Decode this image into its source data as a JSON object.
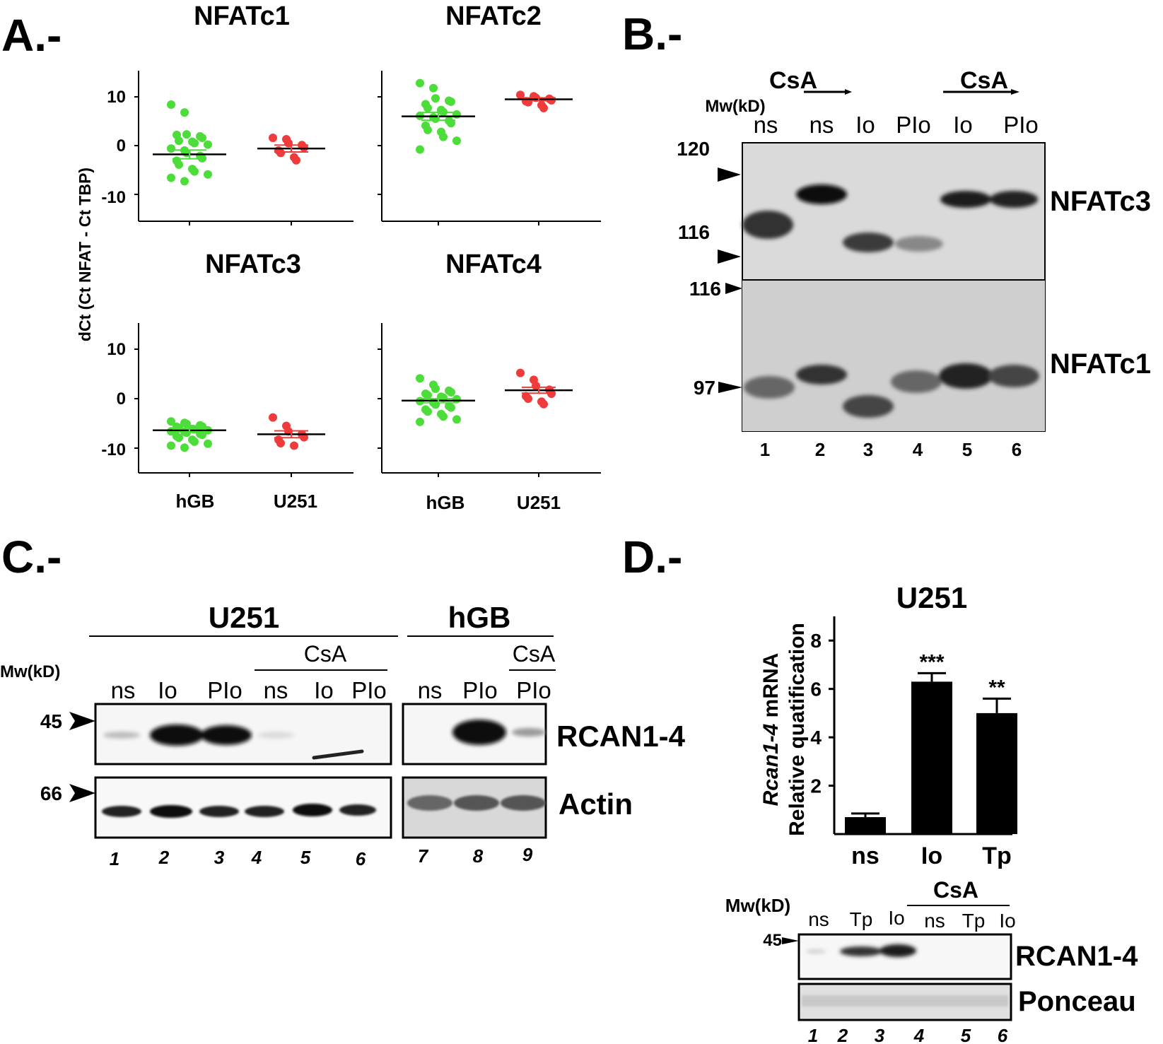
{
  "panels": {
    "A": {
      "label": "A.-",
      "ylabel": "dCt (Ct NFAT - Ct TBP)",
      "yticks": [
        "10",
        "0",
        "-10"
      ],
      "groups": [
        "hGB",
        "U251"
      ],
      "plots": [
        {
          "title": "NFATc1",
          "hGB": {
            "mean": -1.8,
            "sem": 0.9,
            "points": [
              8.4,
              6.8,
              2.3,
              1.9,
              1.6,
              2.2,
              1.0,
              0.8,
              0.5,
              0.2,
              -0.6,
              -1.0,
              -1.5,
              -2.1,
              -2.6,
              -3.1,
              -3.9,
              -4.8,
              -5.3,
              -5.9,
              -6.6,
              -7.3
            ]
          },
          "U251": {
            "mean": -0.6,
            "sem": 0.7,
            "points": [
              1.6,
              1.3,
              0.5,
              0.1,
              -0.4,
              -1.0,
              -1.5,
              -2.4,
              -3.0
            ]
          }
        },
        {
          "title": "NFATc2",
          "hGB": {
            "mean": 6.0,
            "sem": 0.8,
            "points": [
              12.8,
              11.8,
              9.7,
              9.2,
              9.0,
              8.5,
              7.7,
              7.3,
              6.9,
              6.4,
              6.1,
              5.8,
              5.5,
              5.1,
              4.6,
              4.1,
              3.2,
              2.8,
              1.8,
              1.0,
              -0.8
            ]
          },
          "U251": {
            "mean": 9.5,
            "sem": 0.3,
            "points": [
              10.4,
              10.1,
              9.8,
              9.6,
              9.3,
              9.1,
              8.9,
              8.3,
              7.7
            ]
          }
        },
        {
          "title": "NFATc3",
          "hGB": {
            "mean": -6.4,
            "sem": 0.3,
            "points": [
              -4.6,
              -4.9,
              -5.1,
              -5.4,
              -5.6,
              -5.7,
              -5.9,
              -6.1,
              -6.2,
              -6.4,
              -6.6,
              -6.7,
              -6.9,
              -7.1,
              -7.3,
              -7.6,
              -7.9,
              -8.3,
              -8.7,
              -9.1,
              -9.5,
              -9.9
            ]
          },
          "U251": {
            "mean": -7.2,
            "sem": 0.7,
            "points": [
              -3.8,
              -5.5,
              -6.6,
              -7.2,
              -7.8,
              -8.3,
              -9.0,
              -9.5
            ]
          }
        },
        {
          "title": "NFATc4",
          "hGB": {
            "mean": -0.4,
            "sem": 0.4,
            "points": [
              4.1,
              2.8,
              2.0,
              1.6,
              1.3,
              1.0,
              0.7,
              0.4,
              0.2,
              -0.1,
              -0.5,
              -0.8,
              -1.2,
              -1.5,
              -1.8,
              -2.2,
              -2.6,
              -3.1,
              -3.6,
              -4.2,
              -4.7
            ]
          },
          "U251": {
            "mean": 1.7,
            "sem": 0.6,
            "points": [
              5.2,
              3.8,
              2.6,
              1.8,
              1.0,
              0.5,
              0.0,
              -0.6,
              -1.1
            ]
          }
        }
      ]
    },
    "B": {
      "label": "B.-",
      "mw_label": "Mw(kD)",
      "csa": "CsA",
      "lanes": [
        "ns",
        "ns",
        "Io",
        "PIo",
        "Io",
        "PIo"
      ],
      "markers": [
        "120",
        "116",
        "116",
        "97"
      ],
      "proteins": [
        "NFATc3",
        "NFATc1"
      ],
      "lane_numbers": [
        "1",
        "2",
        "3",
        "4",
        "5",
        "6"
      ]
    },
    "C": {
      "label": "C.-",
      "mw_label": "Mw(kD)",
      "u251": "U251",
      "hgb": "hGB",
      "csa": "CsA",
      "csa2": "CsA",
      "lanes": [
        "ns",
        "Io",
        "PIo",
        "ns",
        "Io",
        "PIo",
        "ns",
        "PIo",
        "PIo"
      ],
      "markers": [
        "45",
        "66"
      ],
      "proteins": [
        "RCAN1-4",
        "Actin"
      ],
      "lane_numbers": [
        "1",
        "2",
        "3",
        "4",
        "5",
        "6",
        "7",
        "8",
        "9"
      ]
    },
    "D": {
      "label": "D.-",
      "chart_title": "U251",
      "ylabel_italic": "Rcan1-4",
      "ylabel_rest": " mRNA",
      "ylabel2": "Relative quatification",
      "yticks": [
        "8",
        "6",
        "4",
        "2"
      ],
      "sig": [
        "***",
        "**"
      ],
      "mw_label": "Mw(kD)",
      "csa": "CsA",
      "lanes": [
        "ns",
        "Tp",
        "Io",
        "ns",
        "Tp",
        "Io"
      ],
      "marker": "45",
      "proteins": [
        "RCAN1-4",
        "Ponceau"
      ],
      "lane_numbers": [
        "1",
        "2",
        "3",
        "4",
        "5",
        "6"
      ]
    }
  },
  "chart_data": {
    "type": "bar",
    "title": "U251",
    "categories": [
      "ns",
      "Io",
      "Tp"
    ],
    "values": [
      0.7,
      6.3,
      5.0
    ],
    "errors": [
      0.15,
      0.35,
      0.6
    ],
    "ylabel": "Rcan1-4 mRNA Relative quatification",
    "ylim": [
      0,
      9
    ],
    "significance": [
      "",
      "***",
      "**"
    ]
  }
}
